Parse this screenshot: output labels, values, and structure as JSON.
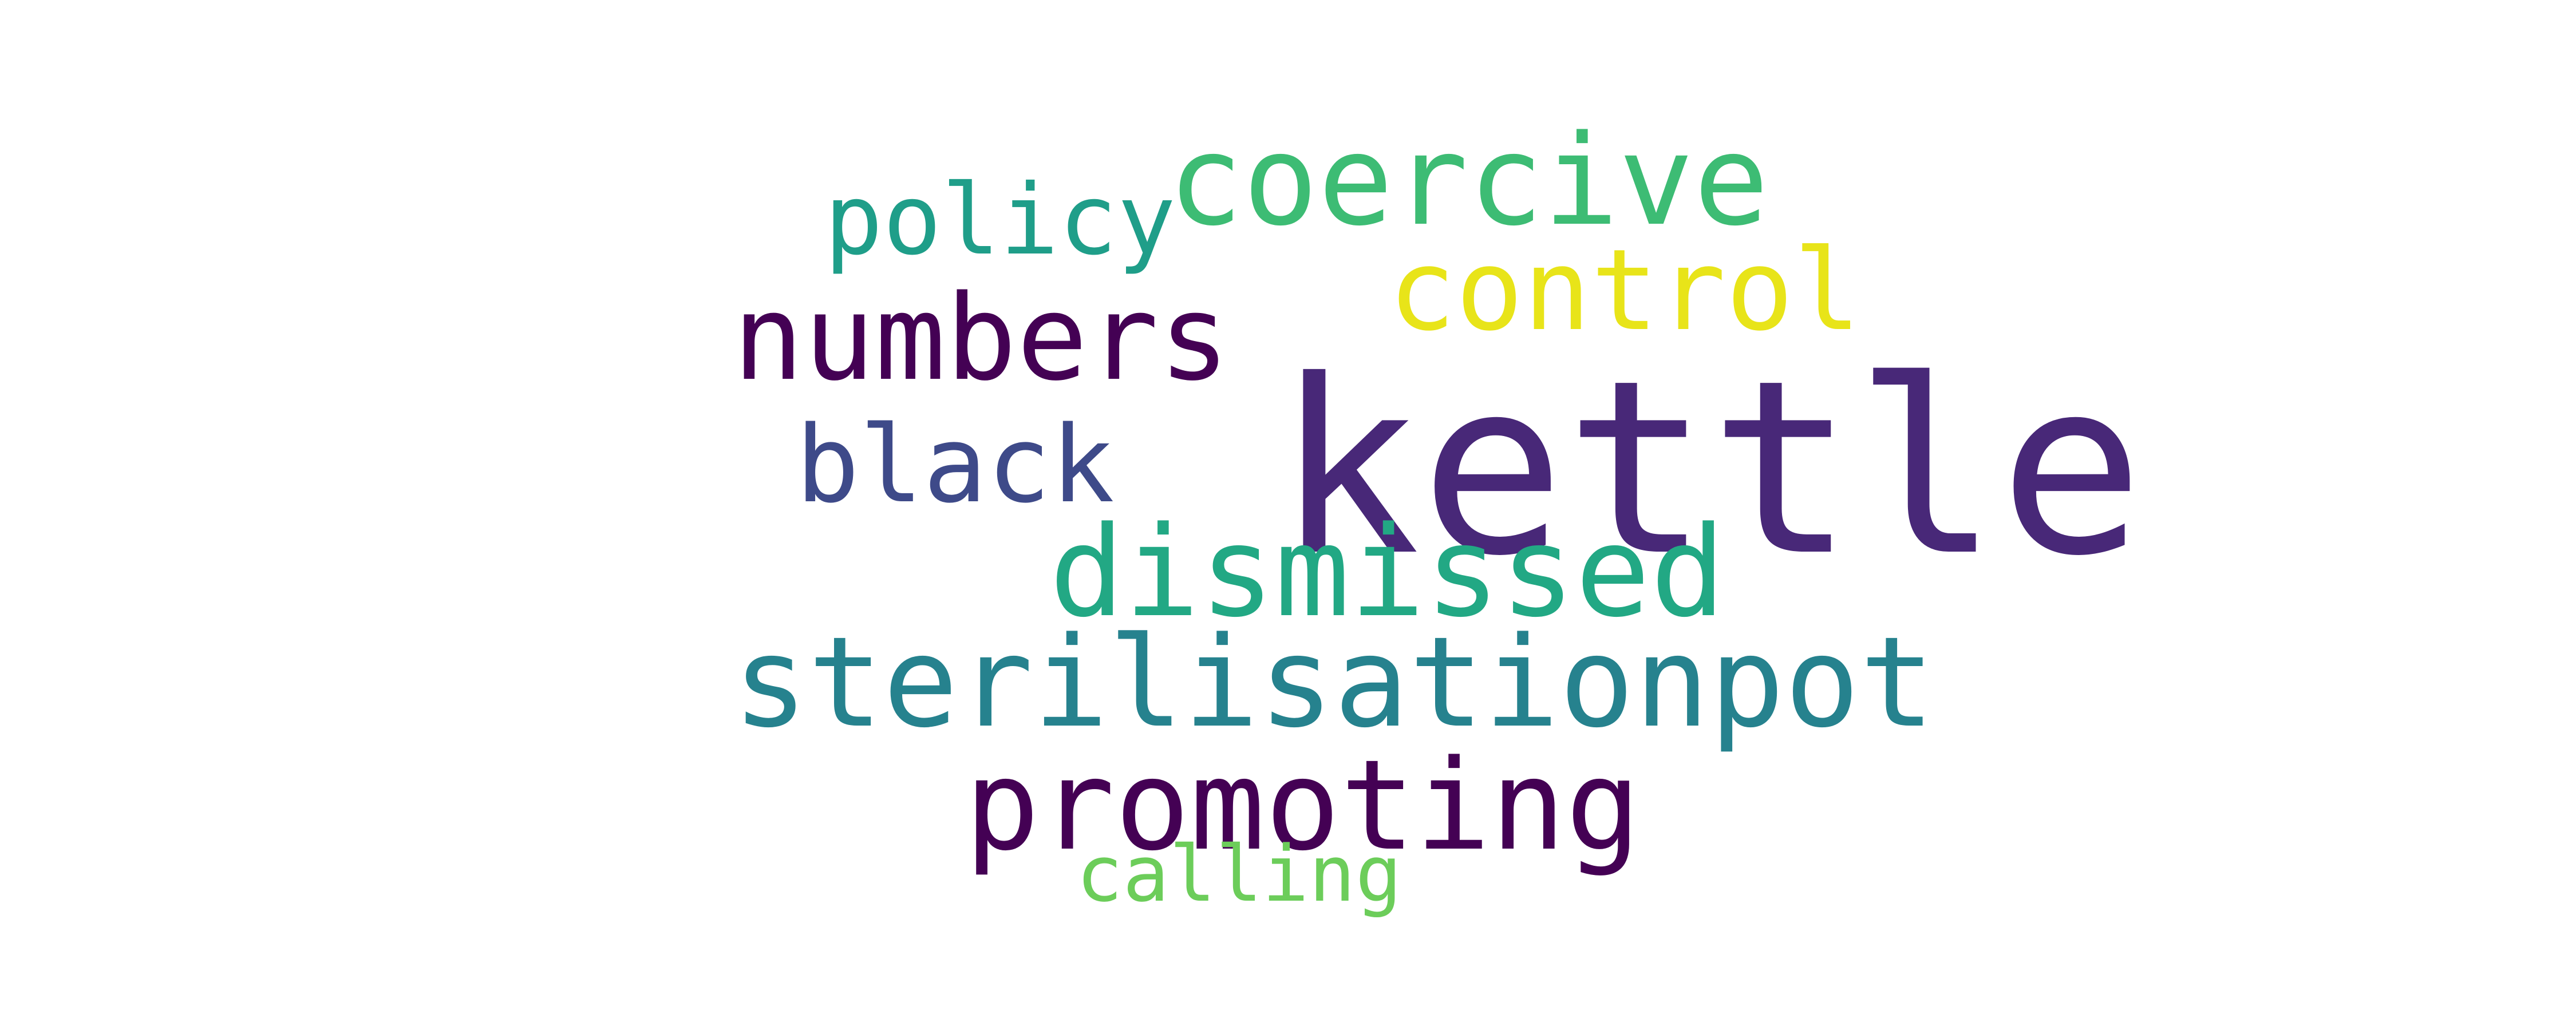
{
  "words": [
    {
      "id": "kettle",
      "text": "kettle",
      "color": "#482878"
    },
    {
      "id": "sterilisationpot",
      "text": "sterilisationpot",
      "color": "#26828e"
    },
    {
      "id": "dismissed",
      "text": "dismissed",
      "color": "#22a884"
    },
    {
      "id": "promoting",
      "text": "promoting",
      "color": "#440154"
    },
    {
      "id": "numbers",
      "text": "numbers",
      "color": "#440154"
    },
    {
      "id": "coercive",
      "text": "coercive",
      "color": "#3dbc74"
    },
    {
      "id": "control",
      "text": "control",
      "color": "#e8e419"
    },
    {
      "id": "policy",
      "text": "policy",
      "color": "#1f9e89"
    },
    {
      "id": "black",
      "text": "black",
      "color": "#3e4a89"
    },
    {
      "id": "calling",
      "text": "calling",
      "color": "#6ccd5a"
    }
  ]
}
